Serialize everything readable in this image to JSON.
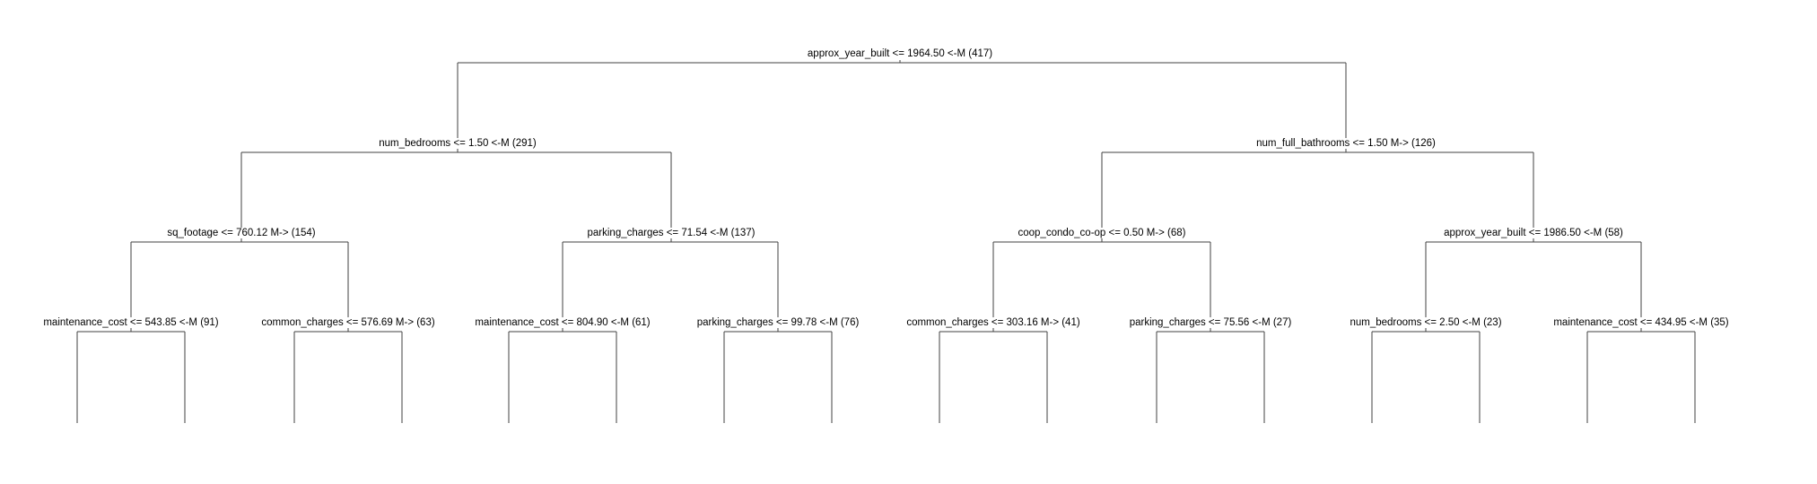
{
  "tree": {
    "nodes": [
      {
        "id": "n0",
        "parent": null,
        "label": "approx_year_built <= 1964.50 <-M (417)"
      },
      {
        "id": "n1",
        "parent": "n0",
        "label": "num_bedrooms <= 1.50 <-M (291)"
      },
      {
        "id": "n2",
        "parent": "n0",
        "label": "num_full_bathrooms <= 1.50 M-> (126)"
      },
      {
        "id": "n3",
        "parent": "n1",
        "label": "sq_footage <= 760.12 M-> (154)"
      },
      {
        "id": "n4",
        "parent": "n1",
        "label": "parking_charges <= 71.54 <-M (137)"
      },
      {
        "id": "n5",
        "parent": "n2",
        "label": "coop_condo_co-op <= 0.50 M-> (68)"
      },
      {
        "id": "n6",
        "parent": "n2",
        "label": "approx_year_built <= 1986.50 <-M (58)"
      },
      {
        "id": "n7",
        "parent": "n3",
        "label": "maintenance_cost <= 543.85 <-M (91)"
      },
      {
        "id": "n8",
        "parent": "n3",
        "label": "common_charges <= 576.69 M-> (63)"
      },
      {
        "id": "n9",
        "parent": "n4",
        "label": "maintenance_cost <= 804.90 <-M (61)"
      },
      {
        "id": "n10",
        "parent": "n4",
        "label": "parking_charges <= 99.78 <-M (76)"
      },
      {
        "id": "n11",
        "parent": "n5",
        "label": "common_charges <= 303.16 M-> (41)"
      },
      {
        "id": "n12",
        "parent": "n5",
        "label": "parking_charges <= 75.56 <-M (27)"
      },
      {
        "id": "n13",
        "parent": "n6",
        "label": "num_bedrooms <= 2.50 <-M (23)"
      },
      {
        "id": "n14",
        "parent": "n6",
        "label": "maintenance_cost <= 434.95 <-M (35)"
      }
    ]
  },
  "colors": {
    "line": "#404040",
    "text": "#000000",
    "background": "#ffffff"
  }
}
